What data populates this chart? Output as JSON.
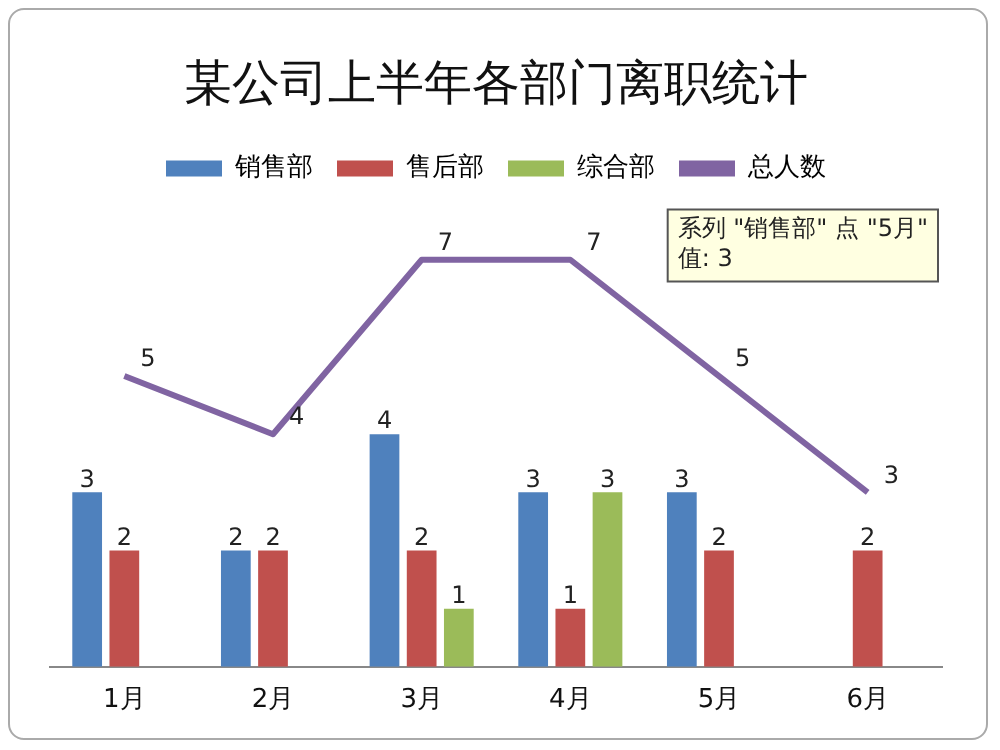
{
  "chart_data": {
    "type": "bar",
    "title": "某公司上半年各部门离职统计",
    "categories": [
      "1月",
      "2月",
      "3月",
      "4月",
      "5月",
      "6月"
    ],
    "series": [
      {
        "name": "销售部",
        "color": "#4f81bd",
        "values": [
          3,
          2,
          4,
          3,
          3,
          null
        ]
      },
      {
        "name": "售后部",
        "color": "#c0504d",
        "values": [
          2,
          2,
          2,
          1,
          2,
          2
        ]
      },
      {
        "name": "综合部",
        "color": "#9bbb59",
        "values": [
          null,
          null,
          1,
          3,
          null,
          null
        ]
      },
      {
        "name": "总人数",
        "type": "line",
        "color": "#8064a2",
        "values": [
          5,
          4,
          7,
          7,
          5,
          3
        ]
      }
    ],
    "data_labels": true,
    "legend": "top",
    "grid": false,
    "marker": "none",
    "tick_labels": "x",
    "annotations": [
      "系列 \"销售部\" 点 \"5月\"\n值: 3"
    ]
  }
}
